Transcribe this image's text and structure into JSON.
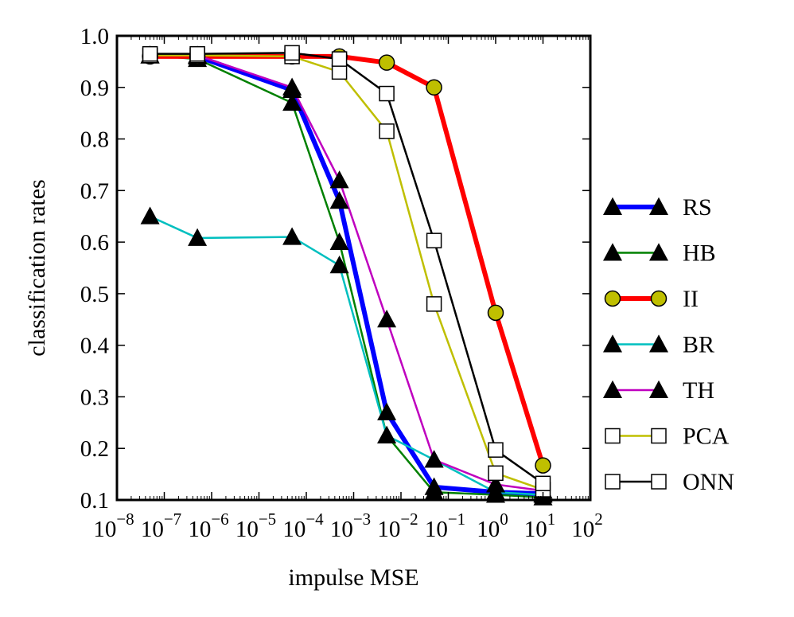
{
  "chart_data": {
    "type": "line",
    "title": "",
    "xlabel": "impulse MSE",
    "ylabel": "classification rates",
    "xscale": "log",
    "xlim": [
      1e-08,
      100
    ],
    "ylim": [
      0.1,
      1.0
    ],
    "x_ticks": [
      {
        "base": "10",
        "exp": "−8",
        "value": 1e-08
      },
      {
        "base": "10",
        "exp": "−7",
        "value": 1e-07
      },
      {
        "base": "10",
        "exp": "−6",
        "value": 1e-06
      },
      {
        "base": "10",
        "exp": "−5",
        "value": 1e-05
      },
      {
        "base": "10",
        "exp": "−4",
        "value": 0.0001
      },
      {
        "base": "10",
        "exp": "−3",
        "value": 0.001
      },
      {
        "base": "10",
        "exp": "−2",
        "value": 0.01
      },
      {
        "base": "10",
        "exp": "−1",
        "value": 0.1
      },
      {
        "base": "10",
        "exp": "0",
        "value": 1
      },
      {
        "base": "10",
        "exp": "1",
        "value": 10
      },
      {
        "base": "10",
        "exp": "2",
        "value": 100
      }
    ],
    "y_ticks": [
      "0.1",
      "0.2",
      "0.3",
      "0.4",
      "0.5",
      "0.6",
      "0.7",
      "0.8",
      "0.9",
      "1.0"
    ],
    "legend_position": "outside-right",
    "series": [
      {
        "name": "RS",
        "color": "#0000ff",
        "width": "thick",
        "marker": "triangle",
        "marker_fill": "#000000",
        "x": [
          5e-08,
          5e-07,
          5e-05,
          0.0005,
          0.005,
          0.05,
          1,
          10
        ],
        "y": [
          0.962,
          0.96,
          0.895,
          0.68,
          0.27,
          0.125,
          0.115,
          0.112
        ]
      },
      {
        "name": "HB",
        "color": "#008000",
        "width": "normal",
        "marker": "triangle",
        "marker_fill": "#000000",
        "x": [
          5e-08,
          5e-07,
          5e-05,
          0.0005,
          0.005,
          0.05,
          1,
          10
        ],
        "y": [
          0.962,
          0.955,
          0.87,
          0.6,
          0.225,
          0.115,
          0.11,
          0.105
        ]
      },
      {
        "name": "II",
        "color": "#ff0000",
        "width": "thick",
        "marker": "circle",
        "marker_fill": "#bfbf00",
        "x": [
          5e-08,
          5e-07,
          5e-05,
          0.0005,
          0.005,
          0.05,
          1,
          10
        ],
        "y": [
          0.96,
          0.96,
          0.96,
          0.96,
          0.948,
          0.9,
          0.463,
          0.167
        ]
      },
      {
        "name": "BR",
        "color": "#00bfbf",
        "width": "normal",
        "marker": "triangle",
        "marker_fill": "#000000",
        "x": [
          5e-08,
          5e-07,
          5e-05,
          0.0005,
          0.005,
          0.05,
          1,
          10
        ],
        "y": [
          0.65,
          0.608,
          0.61,
          0.555,
          0.225,
          0.178,
          0.115,
          0.11
        ]
      },
      {
        "name": "TH",
        "color": "#bf00bf",
        "width": "normal",
        "marker": "triangle",
        "marker_fill": "#000000",
        "x": [
          5e-08,
          5e-07,
          5e-05,
          0.0005,
          0.005,
          0.05,
          1,
          10
        ],
        "y": [
          0.962,
          0.962,
          0.9,
          0.72,
          0.45,
          0.178,
          0.13,
          0.118
        ]
      },
      {
        "name": "PCA",
        "color": "#bfbf00",
        "width": "normal",
        "marker": "square",
        "marker_fill": "#ffffff",
        "x": [
          5e-08,
          5e-07,
          5e-05,
          0.0005,
          0.005,
          0.05,
          1,
          10
        ],
        "y": [
          0.962,
          0.962,
          0.96,
          0.93,
          0.815,
          0.48,
          0.152,
          0.12
        ]
      },
      {
        "name": "ONN",
        "color": "#000000",
        "width": "normal",
        "marker": "square",
        "marker_fill": "#ffffff",
        "x": [
          5e-08,
          5e-07,
          5e-05,
          0.0005,
          0.005,
          0.05,
          1,
          10
        ],
        "y": [
          0.965,
          0.965,
          0.967,
          0.955,
          0.888,
          0.603,
          0.197,
          0.132
        ]
      }
    ]
  }
}
